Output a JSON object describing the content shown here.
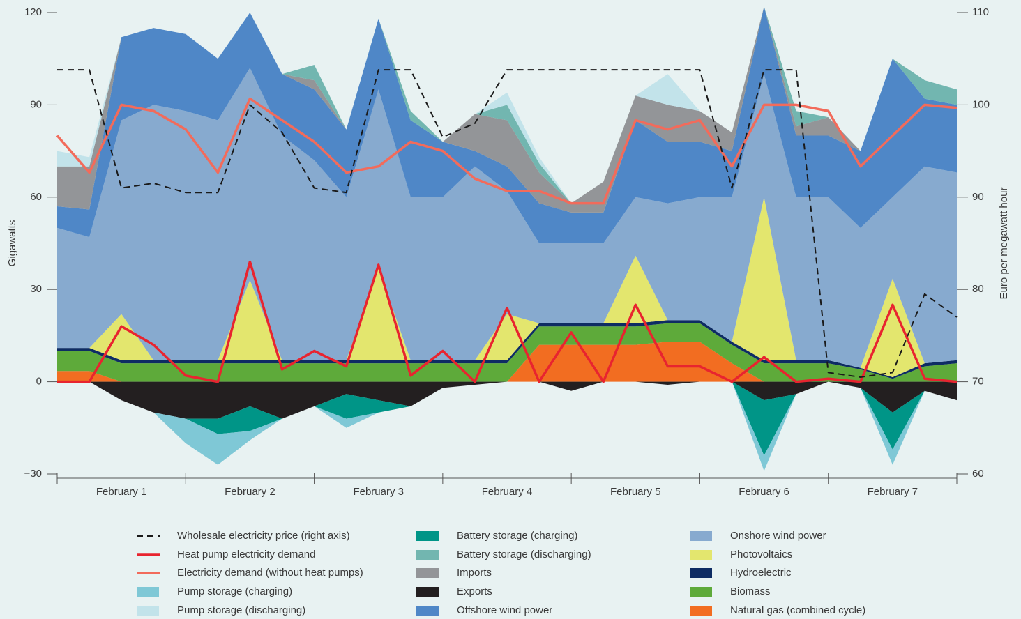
{
  "chart_data": {
    "type": "area",
    "y_label": "Gigawatts",
    "y2_label": "Euro per megawatt hour",
    "x": [
      0,
      6,
      12,
      18,
      24,
      30,
      36,
      42,
      48,
      54,
      60,
      66,
      72,
      78,
      84,
      90,
      96,
      102,
      108,
      114,
      120,
      126,
      132,
      138,
      144,
      150,
      156,
      162,
      168
    ],
    "xlim": [
      0,
      168
    ],
    "xticks": [
      {
        "value": 12,
        "label": "February 1"
      },
      {
        "value": 36,
        "label": "February 2"
      },
      {
        "value": 60,
        "label": "February 3"
      },
      {
        "value": 84,
        "label": "February 4"
      },
      {
        "value": 108,
        "label": "February 5"
      },
      {
        "value": 132,
        "label": "February 6"
      },
      {
        "value": 156,
        "label": "February 7"
      }
    ],
    "ylim": [
      -30,
      120
    ],
    "yticks": [
      {
        "value": -30,
        "label": "−30"
      },
      0,
      30,
      60,
      90,
      120
    ],
    "y2lim": [
      60,
      110
    ],
    "y2ticks": [
      60,
      70,
      80,
      90,
      100,
      110
    ],
    "series": [
      {
        "name": "Wholesale electricity price (right axis)",
        "type": "line",
        "dash": true,
        "axis": "y2",
        "color": "#1a1a1a",
        "values": [
          103.8,
          103.8,
          91,
          91.5,
          90.5,
          90.5,
          100,
          97,
          91,
          90.5,
          103.8,
          103.8,
          96.5,
          98,
          103.8,
          103.8,
          103.8,
          103.8,
          103.8,
          103.8,
          103.8,
          91,
          103.8,
          103.8,
          71,
          70.5,
          71,
          79.5,
          77
        ]
      },
      {
        "name": "Heat pump electricity demand",
        "type": "line",
        "color": "#e8242f",
        "values": [
          0,
          0,
          18,
          12,
          2,
          0,
          39,
          4,
          10,
          5,
          38,
          2,
          10,
          0,
          24,
          0,
          16,
          0,
          25,
          5,
          5,
          0,
          8,
          0,
          1,
          0,
          25,
          1,
          0
        ]
      },
      {
        "name": "Electricity demand (without heat pumps)",
        "type": "line",
        "color": "#f26b5b",
        "values": [
          80,
          68,
          90,
          88,
          82,
          68,
          92,
          85,
          78,
          68,
          70,
          78,
          75,
          66,
          62,
          62,
          58,
          58,
          85,
          82,
          85,
          70,
          90,
          90,
          88,
          70,
          80,
          90,
          89
        ]
      },
      {
        "name": "Pump storage (charging)",
        "type": "area",
        "color": "#7fc8d6",
        "values": [
          0,
          0,
          0,
          0,
          -8,
          -10,
          -3,
          0,
          0,
          -3,
          0,
          0,
          0,
          0,
          0,
          0,
          0,
          0,
          0,
          0,
          0,
          0,
          -5,
          0,
          0,
          0,
          -5,
          0,
          0
        ]
      },
      {
        "name": "Pump storage (discharging)",
        "type": "area",
        "color": "#c2e3ea",
        "values": [
          5,
          3,
          0,
          0,
          0,
          0,
          0,
          0,
          0,
          0,
          0,
          0,
          0,
          0,
          4,
          2,
          0,
          0,
          0,
          10,
          0,
          0,
          0,
          0,
          0,
          0,
          0,
          0,
          0
        ]
      },
      {
        "name": "Battery storage (charging)",
        "type": "area",
        "color": "#009587",
        "values": [
          0,
          0,
          0,
          0,
          0,
          -5,
          -8,
          0,
          0,
          -8,
          -4,
          0,
          0,
          0,
          0,
          0,
          0,
          0,
          0,
          0,
          0,
          0,
          -18,
          0,
          0,
          0,
          -12,
          0,
          0
        ]
      },
      {
        "name": "Battery storage (discharging)",
        "type": "area",
        "color": "#72b6b0",
        "values": [
          0,
          0,
          0,
          0,
          0,
          0,
          0,
          0,
          5,
          0,
          0,
          3,
          0,
          0,
          5,
          3,
          0,
          0,
          0,
          0,
          0,
          0,
          0,
          5,
          0,
          0,
          0,
          6,
          5
        ]
      },
      {
        "name": "Imports",
        "type": "area",
        "color": "#939598",
        "values": [
          13,
          14,
          0,
          0,
          0,
          0,
          0,
          0,
          3,
          0,
          0,
          0,
          0,
          12,
          15,
          10,
          3,
          10,
          8,
          12,
          10,
          6,
          0,
          3,
          6,
          0,
          0,
          0,
          0
        ]
      },
      {
        "name": "Exports",
        "type": "area",
        "color": "#231f20",
        "values": [
          0,
          0,
          -6,
          -10,
          -12,
          -12,
          -8,
          -12,
          -8,
          -4,
          -6,
          -8,
          -2,
          -1,
          0,
          0,
          -3,
          0,
          0,
          -1,
          0,
          0,
          -6,
          -4,
          0,
          -2,
          -10,
          -3,
          -6
        ]
      },
      {
        "name": "Offshore wind power",
        "type": "area",
        "color": "#4f87c7",
        "values": [
          7,
          9,
          27,
          25,
          25,
          20,
          18,
          20,
          23,
          22,
          23,
          25,
          18,
          5,
          8,
          13,
          10,
          10,
          25,
          20,
          18,
          15,
          22,
          20,
          20,
          25,
          45,
          22,
          22
        ]
      },
      {
        "name": "Onshore wind power",
        "type": "area",
        "color": "#87aacf",
        "values": [
          39,
          36,
          63,
          83,
          81,
          78,
          69,
          73,
          65,
          53,
          58,
          53,
          53,
          63,
          40,
          26,
          26,
          26,
          19,
          38,
          40,
          47,
          40,
          53,
          53,
          45.5,
          26.5,
          64,
          61
        ]
      },
      {
        "name": "Photovoltaics",
        "type": "area",
        "color": "#e3e66e",
        "values": [
          0,
          0,
          15,
          0,
          0,
          0,
          26,
          0,
          0,
          0,
          30,
          0,
          0,
          0,
          15,
          0,
          0,
          0,
          22,
          0,
          0,
          0,
          53,
          0,
          0,
          0,
          32,
          0,
          0
        ]
      },
      {
        "name": "Hydroelectric",
        "type": "area",
        "color": "#0e2c63",
        "values": [
          1,
          1,
          1,
          1,
          1,
          1,
          1,
          1,
          1,
          1,
          1,
          1,
          1,
          1,
          1,
          1,
          1,
          1,
          1,
          1,
          1,
          1,
          1,
          1,
          1,
          0.5,
          0.5,
          1,
          1
        ]
      },
      {
        "name": "Biomass",
        "type": "area",
        "color": "#5eaa3a",
        "values": [
          6.5,
          6.5,
          6,
          6,
          6,
          6,
          6,
          6,
          6,
          6,
          6,
          6,
          6,
          6,
          6,
          6,
          6,
          6,
          6,
          6,
          6,
          6,
          6,
          6,
          6,
          4,
          1,
          5,
          6
        ]
      },
      {
        "name": "Natural gas (combined cycle)",
        "type": "area",
        "color": "#f26d21",
        "values": [
          3.5,
          3.5,
          0,
          0,
          0,
          0,
          0,
          0,
          0,
          0,
          0,
          0,
          0,
          0,
          0,
          12,
          12,
          12,
          12,
          13,
          13,
          6,
          0,
          0,
          0,
          0,
          0,
          0,
          0
        ]
      }
    ]
  }
}
